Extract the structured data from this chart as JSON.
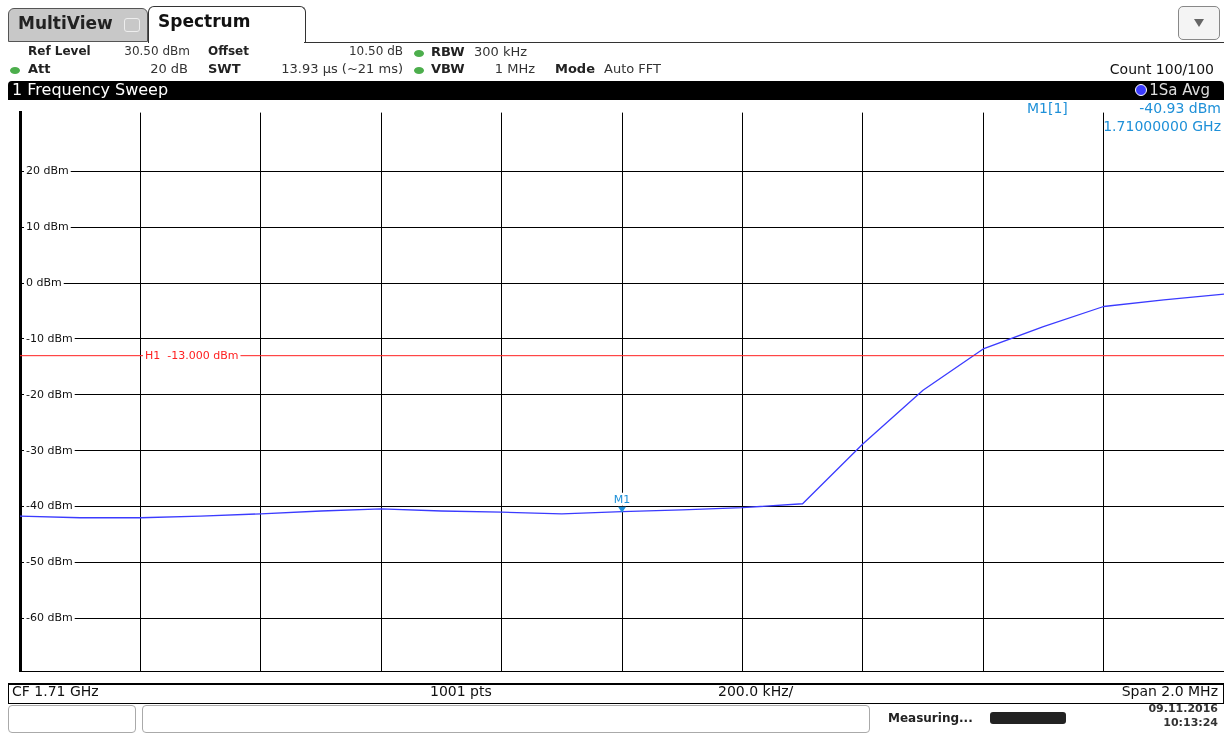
{
  "chart_data": {
    "type": "line",
    "title": "1 Frequency Sweep",
    "categories": [
      null,
      null,
      null,
      null,
      null,
      null,
      null,
      null,
      null,
      null,
      null,
      null,
      null,
      null,
      null,
      null,
      null,
      null,
      null,
      null,
      null
    ],
    "series": [
      {
        "name": "1Sa Avg",
        "color": "#3b3bff",
        "values": [
          -41.7,
          -42.0,
          -42.0,
          -41.7,
          -41.3,
          -40.8,
          -40.4,
          -40.8,
          -41.0,
          -41.3,
          -40.9,
          -40.6,
          -40.2,
          -39.5,
          -28.8,
          -19.2,
          -11.8,
          -7.8,
          -4.2,
          -3.0,
          -2.0
        ]
      }
    ],
    "ylim": [
      -69.5,
      30.5
    ],
    "yticks": [
      {
        "value": 20,
        "label": "20 dBm"
      },
      {
        "value": 10,
        "label": "10 dBm"
      },
      {
        "value": 0,
        "label": "0 dBm"
      },
      {
        "value": -10,
        "label": "-10 dBm"
      },
      {
        "value": -20,
        "label": "-20 dBm"
      },
      {
        "value": -30,
        "label": "-30 dBm"
      },
      {
        "value": -40,
        "label": "-40 dBm"
      },
      {
        "value": -50,
        "label": "-50 dBm"
      },
      {
        "value": -60,
        "label": "-60 dBm"
      }
    ],
    "tick_labels": "y",
    "grid": true,
    "legend": "top right",
    "marker": "none",
    "line_style": "solid",
    "ref_lines": [
      {
        "axis": "y",
        "value": -13,
        "label": "H1  -13.000 dBm",
        "color": "#ff2020"
      }
    ],
    "annotations": [
      "MultiView",
      "Spectrum",
      "Ref Level",
      "30.50 dBm",
      "Offset",
      "10.50 dB",
      "RBW",
      "300 kHz",
      "Att",
      "20 dB",
      "SWT",
      "13.93 µs (~21 ms)",
      "VBW",
      "1 MHz",
      "Mode",
      "Auto FFT",
      "Count 100/100",
      "M1[1]",
      "-40.93 dBm",
      "1.71000000 GHz",
      "CF 1.71 GHz",
      "1001 pts",
      "200.0 kHz/",
      "Span 2.0 MHz",
      "Measuring...",
      "09.11.2016",
      "10:13:24",
      {
        "text": "M1",
        "y": -40.93
      }
    ]
  }
}
